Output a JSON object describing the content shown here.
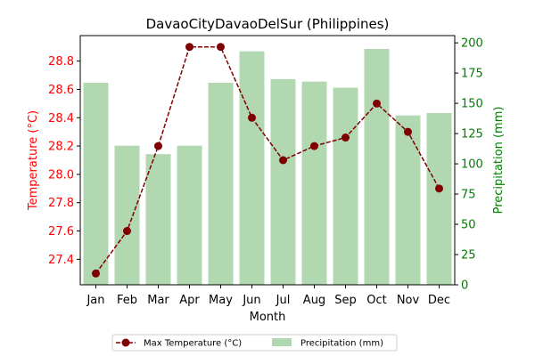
{
  "chart_data": {
    "type": "bar+line",
    "title": "DavaoCityDavaoDelSur (Philippines)",
    "xlabel": "Month",
    "ylabel_left": "Temperature (°C)",
    "ylabel_right": "Precipitation (mm)",
    "categories": [
      "Jan",
      "Feb",
      "Mar",
      "Apr",
      "May",
      "Jun",
      "Jul",
      "Aug",
      "Sep",
      "Oct",
      "Nov",
      "Dec"
    ],
    "series": [
      {
        "name": "Max Temperature (°C)",
        "type": "line",
        "axis": "left",
        "color": "#800000",
        "values": [
          27.3,
          27.6,
          28.2,
          28.9,
          28.9,
          28.4,
          28.1,
          28.2,
          28.26,
          28.5,
          28.3,
          27.9
        ]
      },
      {
        "name": "Precipitation (mm)",
        "type": "bar",
        "axis": "right",
        "color": "#b1d8b1",
        "values": [
          167,
          115,
          108,
          115,
          167,
          193,
          170,
          168,
          163,
          195,
          140,
          142
        ]
      }
    ],
    "ylim_left": [
      27.22,
      28.98
    ],
    "ylim_right": [
      0,
      206
    ],
    "yticks_left": [
      "27.4",
      "27.6",
      "27.8",
      "28.0",
      "28.2",
      "28.4",
      "28.6",
      "28.8"
    ],
    "yticks_right": [
      "0",
      "25",
      "50",
      "75",
      "100",
      "125",
      "150",
      "175",
      "200"
    ],
    "left_axis_color": "#ff0000",
    "right_axis_color": "#008000",
    "grid": false,
    "legend": "bottom-center"
  }
}
